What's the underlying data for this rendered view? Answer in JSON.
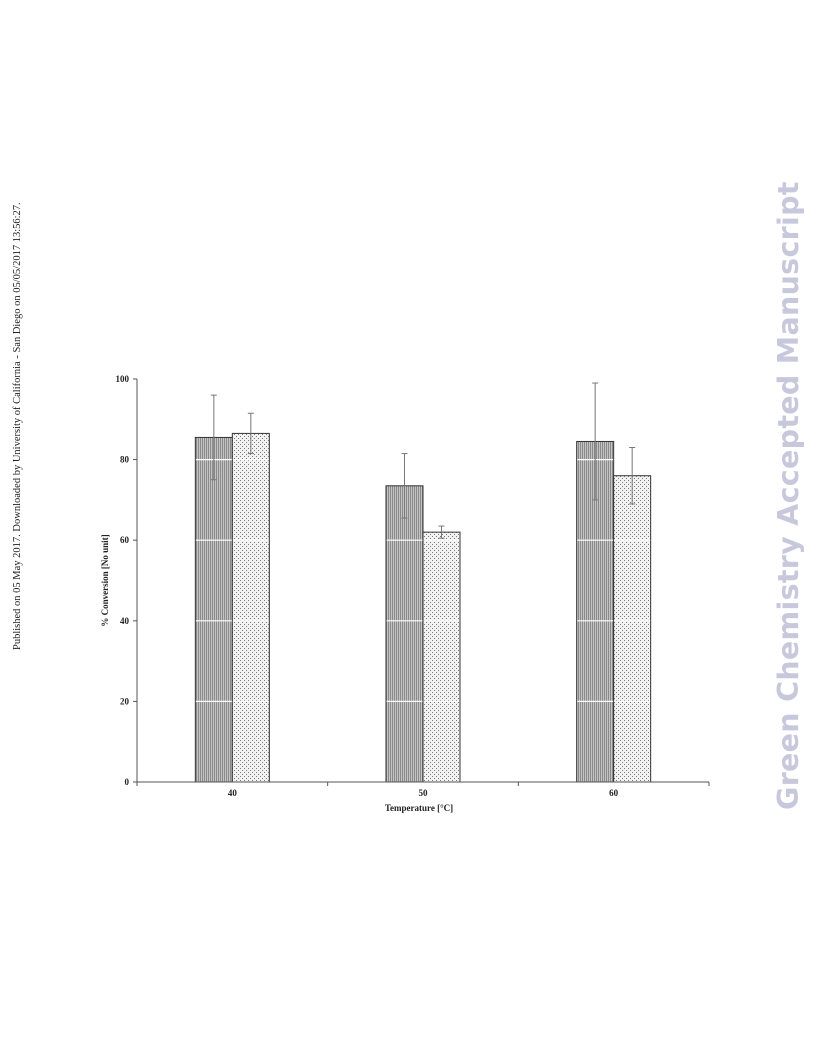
{
  "side_note": "Published on 05 May 2017. Downloaded by University of California - San Diego on 05/05/2017 13:56:27.",
  "watermark": "Green Chemistry Accepted Manuscript",
  "colors": {
    "bar_outline": "#333333",
    "series1_fill": "#bdbdbd",
    "series2_fill": "#ececec",
    "axis": "#555555",
    "gridline": "#ffffff",
    "error_bar": "#777777"
  },
  "chart_data": {
    "type": "bar",
    "title": "",
    "xlabel": "Temperature [°C]",
    "ylabel": "% Conversion [No unit]",
    "ylim": [
      0,
      100
    ],
    "yticks": [
      "0",
      "20",
      "40",
      "60",
      "80",
      "100"
    ],
    "ytick_values": [
      0,
      20,
      40,
      60,
      80,
      100
    ],
    "grid": false,
    "categories": [
      "40",
      "50",
      "60"
    ],
    "series": [
      {
        "values": [
          85.5,
          73.5,
          84.5
        ],
        "errors": [
          10.5,
          8,
          14.5
        ],
        "pattern": "vertical-lines"
      },
      {
        "values": [
          86.5,
          62,
          76
        ],
        "errors": [
          5,
          1.5,
          7
        ],
        "pattern": "dots"
      }
    ]
  }
}
